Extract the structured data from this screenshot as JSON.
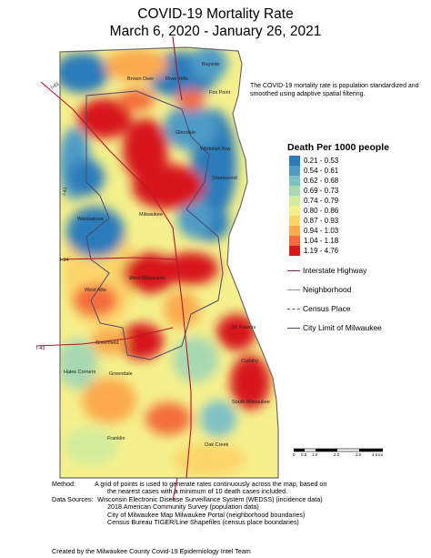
{
  "title_line1": "COVID-19 Mortality Rate",
  "title_line2": "March 6, 2020 - January 26, 2021",
  "note": "The COVID-19 mortality rate is population standardized and smoothed using adaptive spatial filtering.",
  "legend": {
    "title": "Death Per 1000 people",
    "classes": [
      {
        "label": "0.21 - 0.53",
        "color": "#2b7bba"
      },
      {
        "label": "0.54 - 0.61",
        "color": "#4e9bc6"
      },
      {
        "label": "0.62 - 0.68",
        "color": "#7fc0c6"
      },
      {
        "label": "0.69 - 0.73",
        "color": "#a8d8b2"
      },
      {
        "label": "0.74 - 0.79",
        "color": "#d2ec9c"
      },
      {
        "label": "0.80 - 0.86",
        "color": "#f5f08c"
      },
      {
        "label": "0.87 - 0.93",
        "color": "#fcd56a"
      },
      {
        "label": "0.94 - 1.03",
        "color": "#fbaa4e"
      },
      {
        "label": "1.04 - 1.18",
        "color": "#f46d3c"
      },
      {
        "label": "1.19 - 4.76",
        "color": "#d7191c"
      }
    ],
    "lines": [
      {
        "label": "Interstate Highway",
        "color": "#b2182b",
        "style": "solid"
      },
      {
        "label": "Neighborhood",
        "color": "#9a9a9a",
        "style": "solid"
      },
      {
        "label": "Census Place",
        "color": "#555555",
        "style": "dashed"
      },
      {
        "label": "City Limit of Milwaukee",
        "color": "#4a4a6a",
        "style": "solid"
      }
    ]
  },
  "places": [
    "Bayside",
    "Brown Deer",
    "River Hills",
    "Fox Point",
    "Glendale",
    "Whitefish Bay",
    "Shorewood",
    "Wauwatosa",
    "Milwaukee",
    "West Milwaukee",
    "West Allis",
    "St. Francis",
    "Greenfield",
    "Cudahy",
    "Hales Corners",
    "Greendale",
    "South Milwaukee",
    "Franklin",
    "Oak Creek"
  ],
  "highways": [
    "I-43",
    "I-41",
    "I-94",
    "I-43"
  ],
  "scale": {
    "ticks": [
      "0",
      "0.5",
      "1.0",
      "2.0",
      "3.0",
      "4.0"
    ],
    "unit": "mi"
  },
  "footer": {
    "method_label": "Method:",
    "method_line1": "A grid of points is used to generate rates continuously across the map, based on",
    "method_line2": "the nearest cases with a minimum of 10 death cases included.",
    "sources_label": "Data Sources:",
    "sources": [
      "Wisconsin Electronic Disease Surveillance System (WEDSS) (incidence data)",
      "2018 American Community Survey (population data)",
      "City of Milwaukee Map Milwaukee Portal (neighborhood boundaries)",
      "Census Bureau TIGER/Line Shapefiles (census place boundaries)"
    ],
    "credit": "Created by the Milwaukee County Covid-19 Epidemiology Intel Team"
  }
}
